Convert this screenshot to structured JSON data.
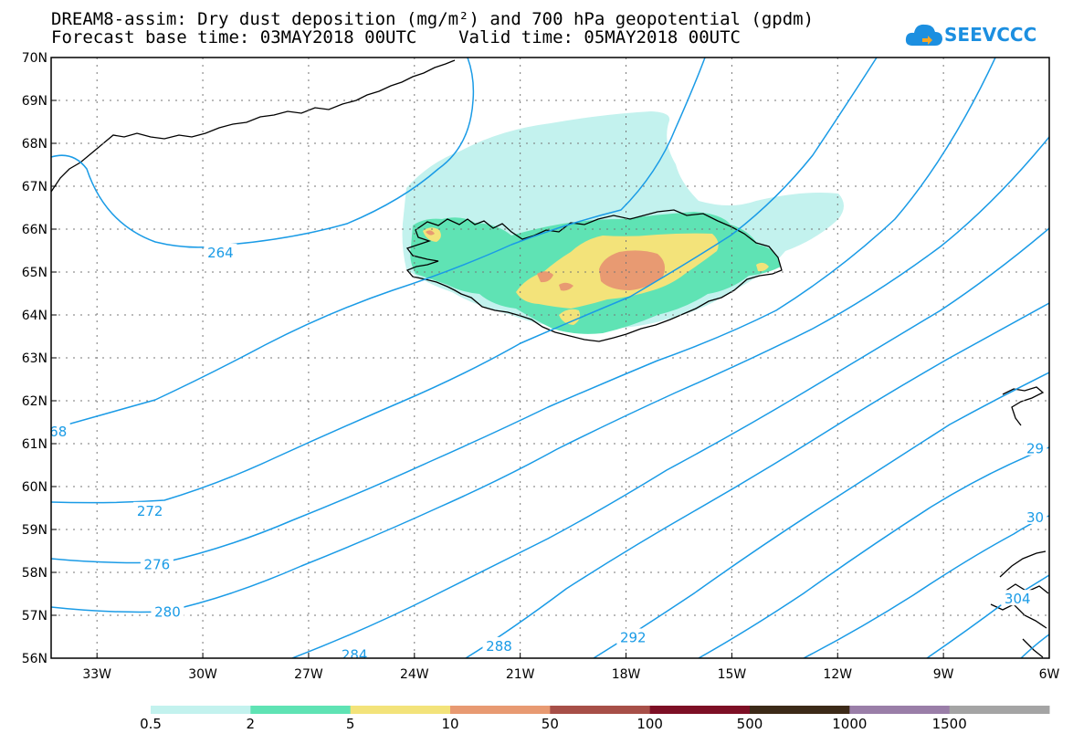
{
  "header": {
    "title_line1": "DREAM8-assim: Dry dust deposition (mg/m²) and 700 hPa geopotential (gpdm)",
    "title_line2": "Forecast base time: 03MAY2018 00UTC    Valid time: 05MAY2018 00UTC",
    "logo_text": "SEEVCCC",
    "logo_icon": "cloud-logo-icon"
  },
  "map": {
    "lat_labels": [
      "70N",
      "69N",
      "68N",
      "67N",
      "66N",
      "65N",
      "64N",
      "63N",
      "62N",
      "61N",
      "60N",
      "59N",
      "58N",
      "57N",
      "56N"
    ],
    "lon_labels": [
      "33W",
      "30W",
      "27W",
      "24W",
      "21W",
      "18W",
      "15W",
      "12W",
      "9W",
      "6W"
    ],
    "lat_range": [
      56,
      70
    ],
    "lon_range": [
      -34.3,
      -6
    ],
    "grid": "dotted",
    "contour_color": "#1a9be6",
    "contour_labels": [
      {
        "text": "264",
        "lon": -29.5,
        "lat": 65.47
      },
      {
        "text": "68",
        "lon": -34.1,
        "lat": 61.3
      },
      {
        "text": "272",
        "lon": -31.5,
        "lat": 59.45
      },
      {
        "text": "276",
        "lon": -31.3,
        "lat": 58.2
      },
      {
        "text": "280",
        "lon": -31.0,
        "lat": 57.1
      },
      {
        "text": "284",
        "lon": -25.7,
        "lat": 56.1
      },
      {
        "text": "288",
        "lon": -21.6,
        "lat": 56.3
      },
      {
        "text": "292",
        "lon": -17.8,
        "lat": 56.5
      },
      {
        "text": "29",
        "lon": -6.4,
        "lat": 60.9
      },
      {
        "text": "30",
        "lon": -6.4,
        "lat": 59.3
      },
      {
        "text": "304",
        "lon": -6.9,
        "lat": 57.4
      }
    ]
  },
  "colorbar": {
    "labels": [
      "0.5",
      "2",
      "5",
      "10",
      "50",
      "100",
      "500",
      "1000",
      "1500"
    ],
    "colors": [
      "#c3f2ee",
      "#5fe3b4",
      "#f3e37a",
      "#e89a72",
      "#a74f48",
      "#7d0f25",
      "#3c2a18",
      "#9a7ea8",
      "#a4a4a4"
    ]
  }
}
